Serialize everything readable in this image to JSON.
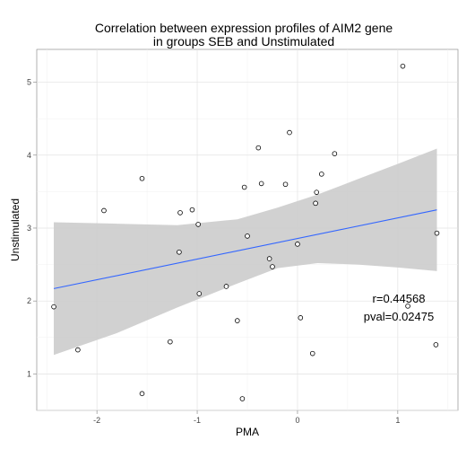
{
  "chart_data": {
    "type": "scatter",
    "title": "Correlation between expression profiles of AIM2 gene",
    "subtitle": "in groups SEB and Unstimulated",
    "xlabel": "PMA",
    "ylabel": "Unstimulated",
    "xlim": [
      -2.6,
      1.6
    ],
    "ylim": [
      0.5,
      5.45
    ],
    "x_ticks": [
      -2,
      -1,
      0,
      1
    ],
    "y_ticks": [
      1,
      2,
      3,
      4,
      5
    ],
    "grid": true,
    "points": [
      {
        "x": -2.43,
        "y": 1.92
      },
      {
        "x": -2.19,
        "y": 1.33
      },
      {
        "x": -1.93,
        "y": 3.24
      },
      {
        "x": -1.55,
        "y": 3.68
      },
      {
        "x": -1.55,
        "y": 0.73
      },
      {
        "x": -1.27,
        "y": 1.44
      },
      {
        "x": -1.18,
        "y": 2.67
      },
      {
        "x": -1.17,
        "y": 3.21
      },
      {
        "x": -1.05,
        "y": 3.25
      },
      {
        "x": -0.99,
        "y": 3.05
      },
      {
        "x": -0.98,
        "y": 2.1
      },
      {
        "x": -0.71,
        "y": 2.2
      },
      {
        "x": -0.6,
        "y": 1.73
      },
      {
        "x": -0.55,
        "y": 0.66
      },
      {
        "x": -0.53,
        "y": 3.56
      },
      {
        "x": -0.5,
        "y": 2.89
      },
      {
        "x": -0.39,
        "y": 4.1
      },
      {
        "x": -0.36,
        "y": 3.61
      },
      {
        "x": -0.28,
        "y": 2.58
      },
      {
        "x": -0.25,
        "y": 2.47
      },
      {
        "x": -0.12,
        "y": 3.6
      },
      {
        "x": -0.08,
        "y": 4.31
      },
      {
        "x": 0.0,
        "y": 2.78
      },
      {
        "x": 0.03,
        "y": 1.77
      },
      {
        "x": 0.15,
        "y": 1.28
      },
      {
        "x": 0.18,
        "y": 3.34
      },
      {
        "x": 0.19,
        "y": 3.49
      },
      {
        "x": 0.24,
        "y": 3.74
      },
      {
        "x": 0.37,
        "y": 4.02
      },
      {
        "x": 1.05,
        "y": 5.22
      },
      {
        "x": 1.1,
        "y": 1.93
      },
      {
        "x": 1.38,
        "y": 1.4
      },
      {
        "x": 1.39,
        "y": 2.93
      }
    ],
    "fit_line": {
      "x": [
        -2.43,
        1.39
      ],
      "y": [
        2.17,
        3.25
      ],
      "color": "#3366ff"
    },
    "confidence_band": {
      "x": [
        -2.43,
        -1.8,
        -1.2,
        -0.6,
        -0.2,
        0.2,
        0.6,
        1.0,
        1.39
      ],
      "upper": [
        3.08,
        3.06,
        3.04,
        3.12,
        3.28,
        3.46,
        3.67,
        3.88,
        4.09
      ],
      "lower": [
        1.26,
        1.56,
        1.91,
        2.24,
        2.45,
        2.52,
        2.5,
        2.46,
        2.41
      ],
      "color": "#cccccc"
    },
    "annotations": [
      "r=0.44568",
      "pval=0.02475"
    ]
  }
}
